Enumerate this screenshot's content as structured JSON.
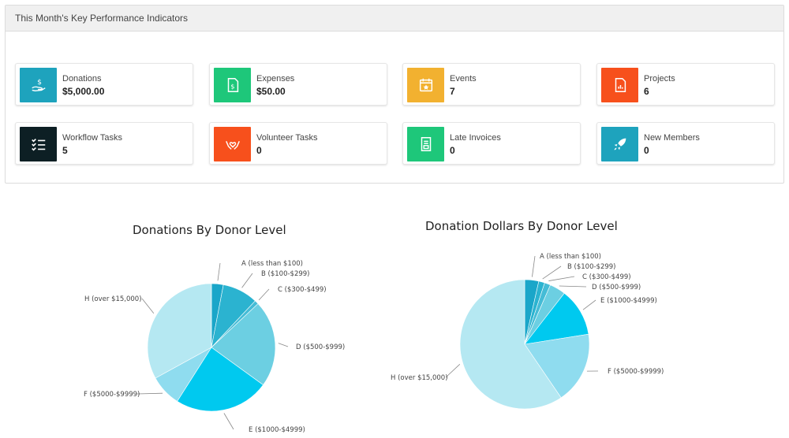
{
  "panel": {
    "title": "This Month's Key Performance Indicators"
  },
  "kpis": [
    {
      "label": "Donations",
      "value": "$5,000.00",
      "icon": "hand-dollar-icon",
      "color": "#1ea3bd"
    },
    {
      "label": "Expenses",
      "value": "$50.00",
      "icon": "receipt-dollar-icon",
      "color": "#1ec77a"
    },
    {
      "label": "Events",
      "value": "7",
      "icon": "calendar-star-icon",
      "color": "#f2b130"
    },
    {
      "label": "Projects",
      "value": "6",
      "icon": "document-chart-icon",
      "color": "#f7501c"
    },
    {
      "label": "Workflow Tasks",
      "value": "5",
      "icon": "checklist-icon",
      "color": "#0d1f24"
    },
    {
      "label": "Volunteer Tasks",
      "value": "0",
      "icon": "heart-hands-icon",
      "color": "#f7501c"
    },
    {
      "label": "Late Invoices",
      "value": "0",
      "icon": "invoice-icon",
      "color": "#1ec77a"
    },
    {
      "label": "New Members",
      "value": "0",
      "icon": "rocket-icon",
      "color": "#1ea3bd"
    }
  ],
  "chart_data": [
    {
      "type": "pie",
      "title": "Donations By Donor Level",
      "categories": [
        "A (less than $100)",
        "B ($100-$299)",
        "C ($300-$499)",
        "D ($500-$999)",
        "E ($1000-$4999)",
        "F ($5000-$9999)",
        "H (over $15,000)"
      ],
      "values": [
        3,
        9,
        1,
        22,
        24,
        8,
        33
      ],
      "colors": [
        "#1aa6c9",
        "#2bb3d0",
        "#45bcd6",
        "#6ccfe2",
        "#00c9ef",
        "#8fdcef",
        "#b5e8f2"
      ]
    },
    {
      "type": "pie",
      "title": "Donation Dollars By Donor Level",
      "categories": [
        "A (less than $100)",
        "B ($100-$299)",
        "C ($300-$499)",
        "D ($500-$999)",
        "E ($1000-$4999)",
        "F ($5000-$9999)",
        "H (over $15,000)"
      ],
      "values": [
        3.5,
        1.5,
        1.5,
        4,
        12,
        18,
        59.5
      ],
      "colors": [
        "#1aa6c9",
        "#2bb3d0",
        "#45bcd6",
        "#6ccfe2",
        "#00c9ef",
        "#8fdcef",
        "#b5e8f2"
      ]
    }
  ]
}
